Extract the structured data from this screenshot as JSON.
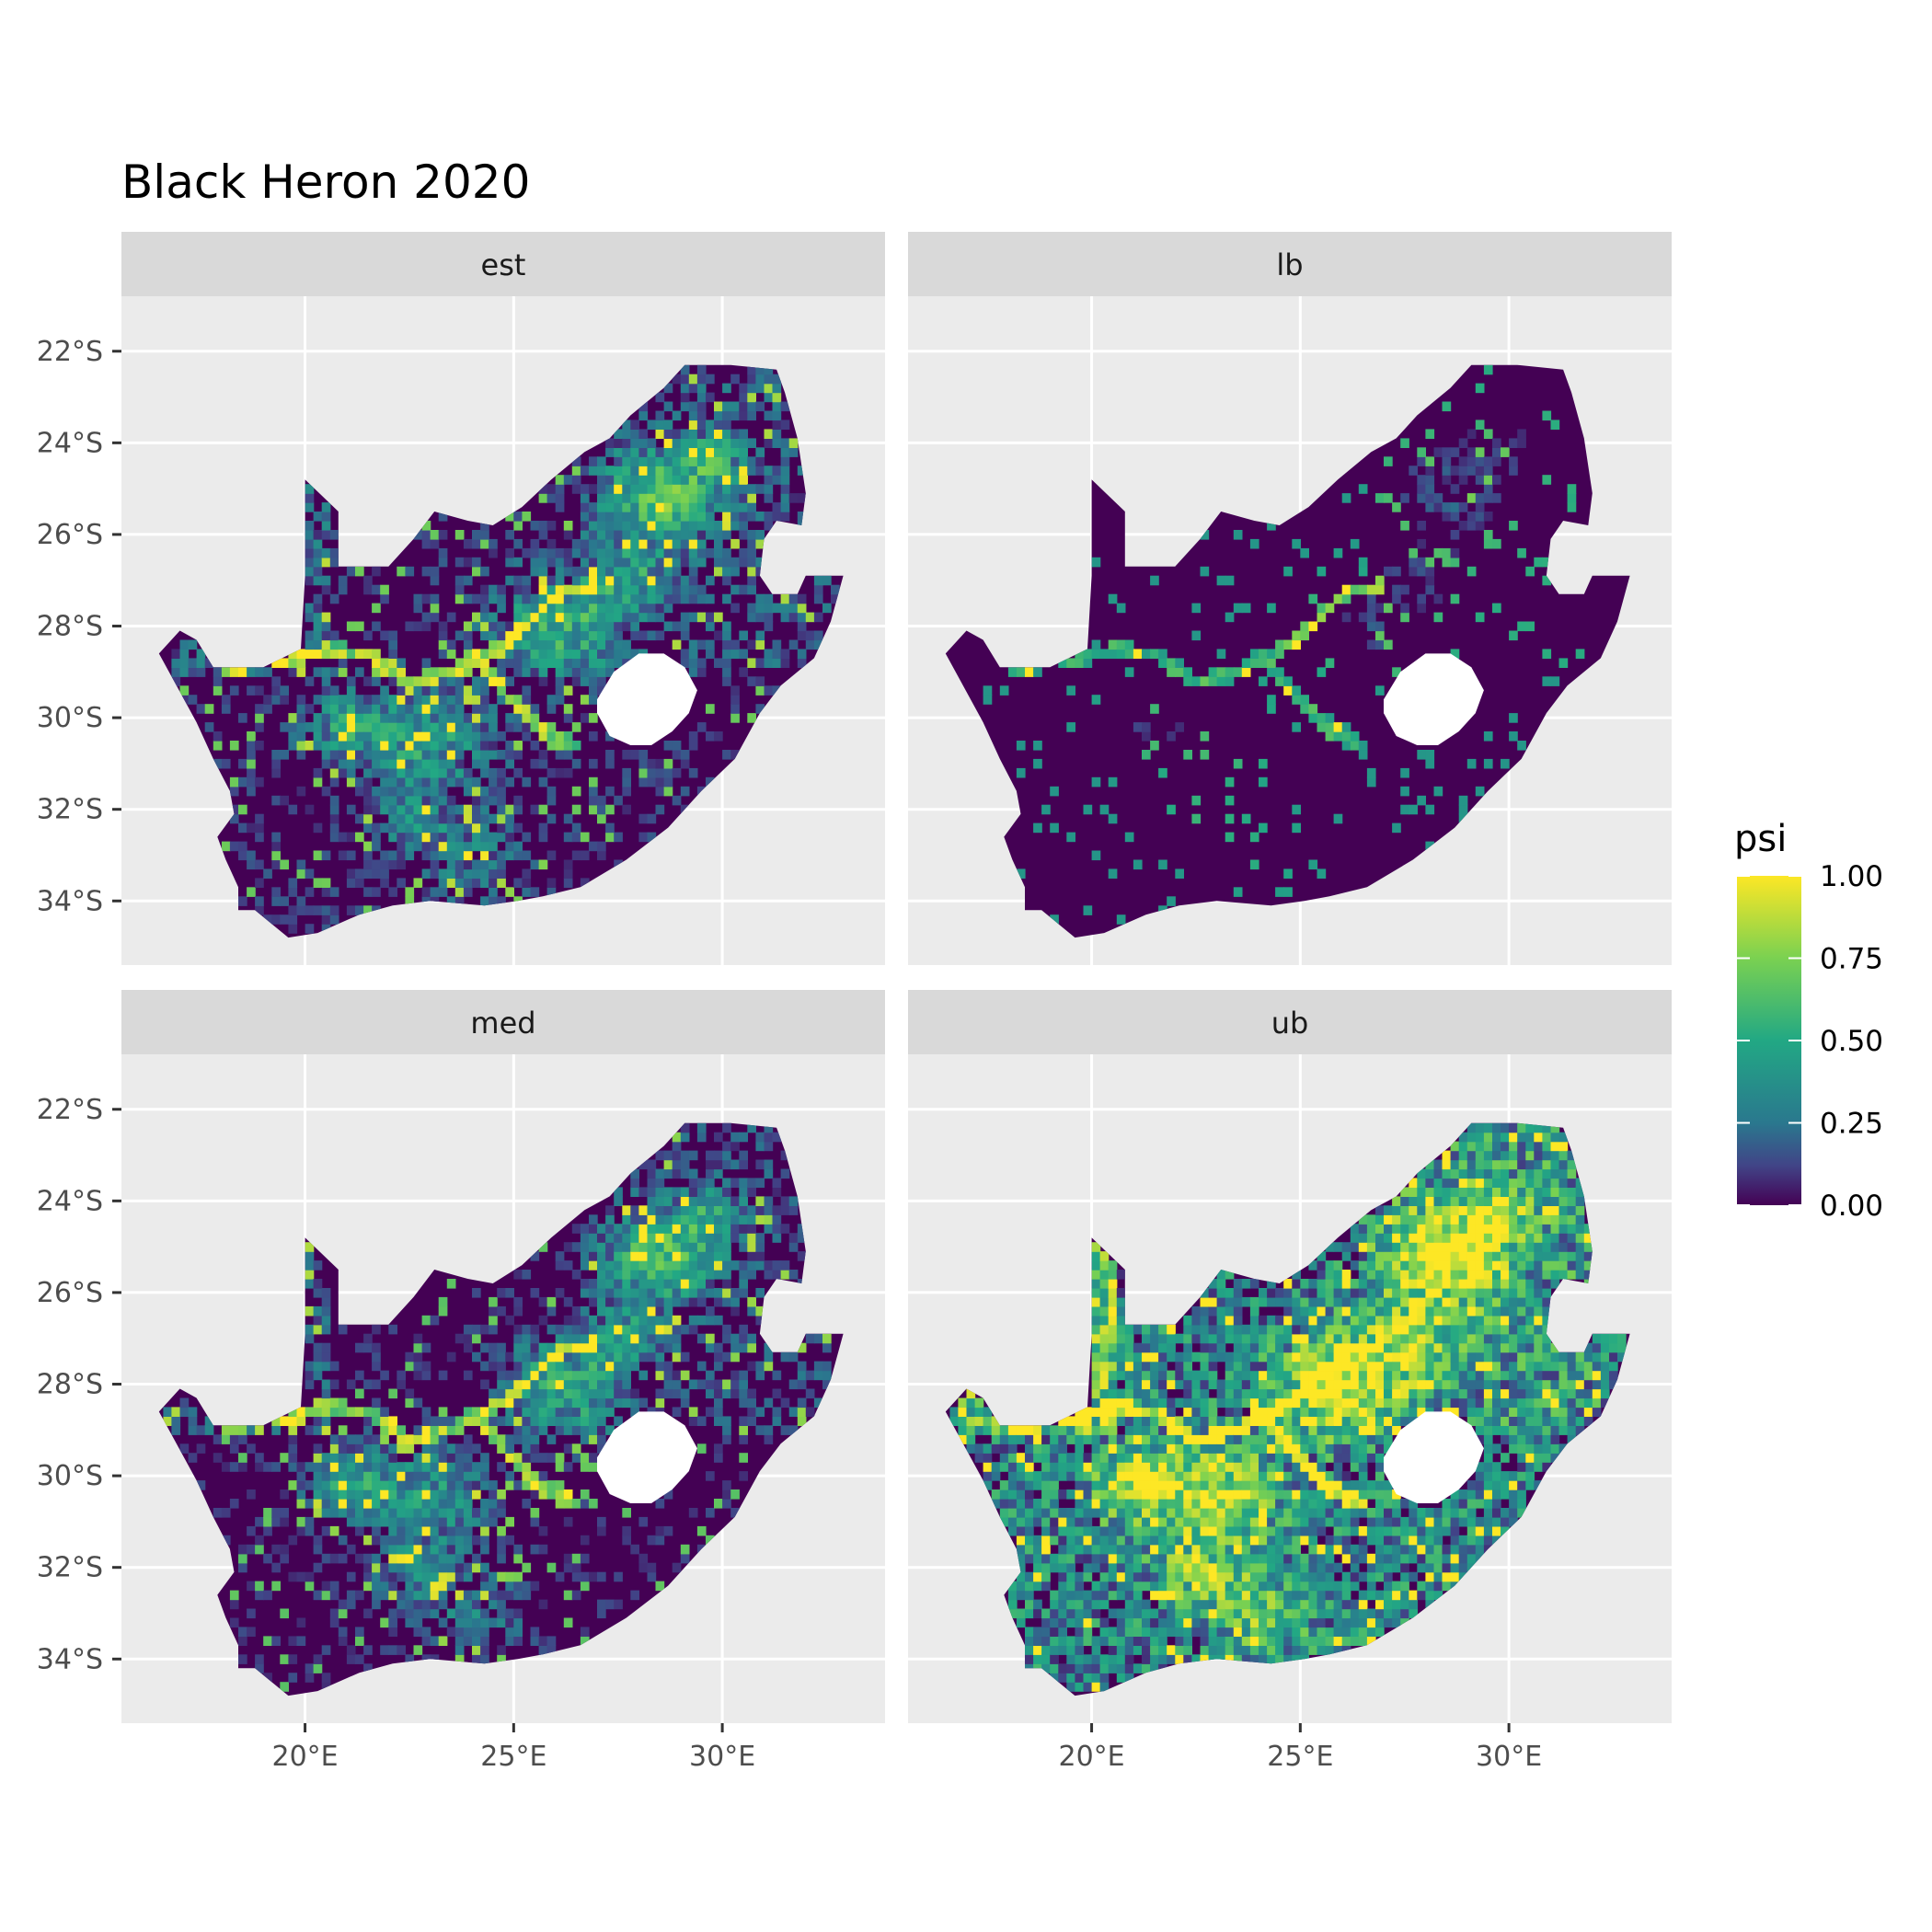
{
  "title": "Black Heron 2020",
  "panels": [
    {
      "key": "est",
      "label": "est"
    },
    {
      "key": "lb",
      "label": "lb"
    },
    {
      "key": "med",
      "label": "med"
    },
    {
      "key": "ub",
      "label": "ub"
    }
  ],
  "y_axis": {
    "ticks": [
      -22,
      -24,
      -26,
      -28,
      -30,
      -32,
      -34
    ],
    "labels": [
      "22°S",
      "24°S",
      "26°S",
      "28°S",
      "30°S",
      "32°S",
      "34°S"
    ],
    "range": [
      -35.4,
      -20.8
    ]
  },
  "x_axis": {
    "ticks": [
      20,
      25,
      30
    ],
    "labels": [
      "20°E",
      "25°E",
      "30°E"
    ],
    "range": [
      15.6,
      33.9
    ]
  },
  "legend": {
    "title": "psi",
    "labels": [
      "1.00",
      "0.75",
      "0.50",
      "0.25",
      "0.00"
    ],
    "values": [
      1.0,
      0.75,
      0.5,
      0.25,
      0.0
    ],
    "colors": [
      "#fde725",
      "#7ad151",
      "#22a884",
      "#2a788e",
      "#414487",
      "#440154"
    ]
  },
  "colors": {
    "panel_bg": "#ebebeb",
    "strip_bg": "#d9d9d9",
    "grid": "#ffffff",
    "low": "#440154",
    "high": "#fde725"
  },
  "chart_data": {
    "type": "heatmap",
    "title": "Black Heron 2020",
    "facets": [
      "est",
      "lb",
      "med",
      "ub"
    ],
    "fill_variable": "psi",
    "fill_scale": "viridis",
    "fill_range": [
      0,
      1
    ],
    "x_range": [
      15.6,
      33.9
    ],
    "y_range": [
      -35.4,
      -20.8
    ],
    "grid": true,
    "legend_position": "right",
    "country_outline_lonlat": [
      [
        16.5,
        -28.6
      ],
      [
        17.0,
        -28.1
      ],
      [
        17.4,
        -28.3
      ],
      [
        17.8,
        -28.9
      ],
      [
        19.0,
        -28.9
      ],
      [
        19.9,
        -28.5
      ],
      [
        20.0,
        -26.9
      ],
      [
        20.0,
        -24.8
      ],
      [
        20.8,
        -25.5
      ],
      [
        20.8,
        -26.7
      ],
      [
        22.0,
        -26.7
      ],
      [
        22.6,
        -26.1
      ],
      [
        23.1,
        -25.5
      ],
      [
        23.9,
        -25.7
      ],
      [
        24.5,
        -25.8
      ],
      [
        25.2,
        -25.4
      ],
      [
        25.9,
        -24.8
      ],
      [
        26.7,
        -24.2
      ],
      [
        27.3,
        -23.9
      ],
      [
        27.8,
        -23.4
      ],
      [
        28.6,
        -22.8
      ],
      [
        29.1,
        -22.3
      ],
      [
        30.2,
        -22.3
      ],
      [
        31.3,
        -22.4
      ],
      [
        31.5,
        -22.9
      ],
      [
        31.8,
        -23.9
      ],
      [
        32.0,
        -25.1
      ],
      [
        31.9,
        -25.8
      ],
      [
        31.3,
        -25.7
      ],
      [
        31.0,
        -26.1
      ],
      [
        30.9,
        -26.9
      ],
      [
        31.2,
        -27.3
      ],
      [
        31.8,
        -27.3
      ],
      [
        32.0,
        -26.9
      ],
      [
        32.9,
        -26.9
      ],
      [
        32.6,
        -27.9
      ],
      [
        32.2,
        -28.7
      ],
      [
        31.4,
        -29.3
      ],
      [
        30.9,
        -29.9
      ],
      [
        30.3,
        -30.9
      ],
      [
        29.5,
        -31.6
      ],
      [
        28.7,
        -32.4
      ],
      [
        27.7,
        -33.1
      ],
      [
        26.6,
        -33.7
      ],
      [
        25.7,
        -33.9
      ],
      [
        25.1,
        -34.0
      ],
      [
        24.3,
        -34.1
      ],
      [
        23.0,
        -34.0
      ],
      [
        22.1,
        -34.1
      ],
      [
        21.3,
        -34.3
      ],
      [
        20.3,
        -34.7
      ],
      [
        19.6,
        -34.8
      ],
      [
        19.2,
        -34.5
      ],
      [
        18.8,
        -34.2
      ],
      [
        18.4,
        -34.2
      ],
      [
        18.4,
        -33.7
      ],
      [
        18.1,
        -33.1
      ],
      [
        17.9,
        -32.6
      ],
      [
        18.3,
        -32.1
      ],
      [
        18.2,
        -31.6
      ],
      [
        17.8,
        -30.9
      ],
      [
        17.4,
        -30.1
      ],
      [
        16.8,
        -29.1
      ],
      [
        16.5,
        -28.6
      ]
    ],
    "lesotho_outline_lonlat": [
      [
        27.0,
        -29.6
      ],
      [
        27.4,
        -29.0
      ],
      [
        28.0,
        -28.6
      ],
      [
        28.6,
        -28.6
      ],
      [
        29.1,
        -28.9
      ],
      [
        29.4,
        -29.4
      ],
      [
        29.2,
        -29.9
      ],
      [
        28.8,
        -30.3
      ],
      [
        28.3,
        -30.6
      ],
      [
        27.8,
        -30.6
      ],
      [
        27.3,
        -30.4
      ],
      [
        27.0,
        -29.9
      ],
      [
        27.0,
        -29.6
      ]
    ],
    "mean_psi_by_facet": {
      "est": 0.18,
      "lb": 0.08,
      "med": 0.16,
      "ub": 0.38
    }
  }
}
